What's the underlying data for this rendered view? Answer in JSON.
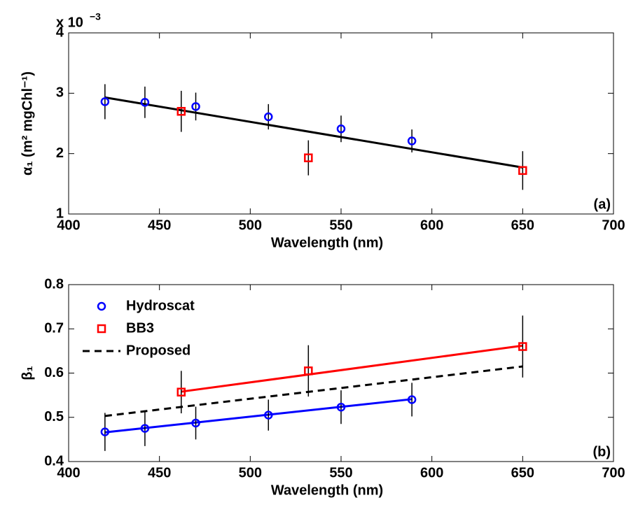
{
  "chart_data": [
    {
      "type": "line",
      "xlim": [
        400,
        700
      ],
      "xticks": [
        400,
        450,
        500,
        550,
        600,
        650,
        700
      ],
      "ylim": [
        1,
        4
      ],
      "yticks": [
        1,
        2,
        3,
        4
      ],
      "y_multiplier": "x 10",
      "y_multiplier_exponent": "−3",
      "xlabel": "Wavelength (nm)",
      "ylabel": "α₁ (m² mgChl⁻¹)",
      "annotation": "(a)",
      "legend": false,
      "series": [
        {
          "name": "Hydroscat",
          "color": "#0000ff",
          "marker": "circle",
          "x": [
            420,
            442,
            470,
            510,
            550,
            589
          ],
          "values": [
            2.86,
            2.85,
            2.78,
            2.61,
            2.41,
            2.21
          ],
          "errors": [
            0.29,
            0.26,
            0.23,
            0.21,
            0.22,
            0.19
          ]
        },
        {
          "name": "BB3",
          "color": "#ff0000",
          "marker": "square",
          "x": [
            462,
            532,
            650
          ],
          "values": [
            2.7,
            1.93,
            1.72
          ],
          "errors": [
            0.34,
            0.29,
            0.32
          ]
        },
        {
          "color": "#000000",
          "x": [
            420,
            650
          ],
          "values": [
            2.93,
            1.77
          ]
        }
      ]
    },
    {
      "type": "line",
      "xlim": [
        400,
        700
      ],
      "xticks": [
        400,
        450,
        500,
        550,
        600,
        650,
        700
      ],
      "ylim": [
        0.4,
        0.8
      ],
      "yticks": [
        0.4,
        0.5,
        0.6,
        0.7,
        0.8
      ],
      "xlabel": "Wavelength (nm)",
      "ylabel": "β₁",
      "annotation": "(b)",
      "legend": "upper left",
      "series": [
        {
          "name": "Hydroscat",
          "color": "#0000ff",
          "marker": "circle",
          "x": [
            420,
            442,
            470,
            510,
            550,
            589
          ],
          "values": [
            0.467,
            0.475,
            0.487,
            0.505,
            0.523,
            0.54
          ],
          "errors": [
            0.043,
            0.04,
            0.037,
            0.035,
            0.038,
            0.038
          ]
        },
        {
          "name": "BB3",
          "color": "#ff0000",
          "marker": "square",
          "x": [
            462,
            532,
            650
          ],
          "values": [
            0.557,
            0.605,
            0.66
          ],
          "errors": [
            0.048,
            0.058,
            0.07
          ]
        },
        {
          "color": "#0000ff",
          "x": [
            420,
            589
          ],
          "values": [
            0.466,
            0.541
          ]
        },
        {
          "color": "#ff0000",
          "x": [
            462,
            650
          ],
          "values": [
            0.558,
            0.662
          ]
        },
        {
          "name": "Proposed",
          "color": "#000000",
          "dash": true,
          "x": [
            420,
            650
          ],
          "values": [
            0.503,
            0.615
          ]
        }
      ]
    }
  ]
}
